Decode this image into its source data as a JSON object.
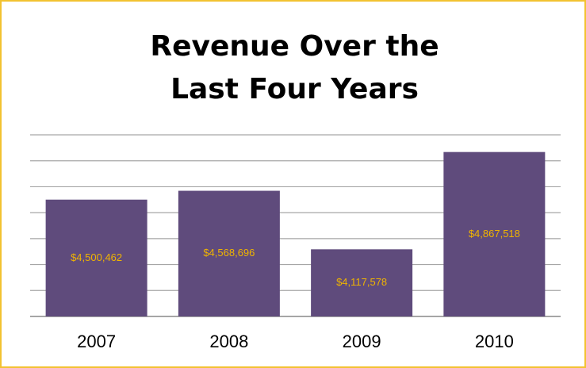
{
  "chart_data": {
    "type": "bar",
    "title": "Revenue Over the\nLast Four Years",
    "categories": [
      "2007",
      "2008",
      "2009",
      "2010"
    ],
    "values": [
      4500462,
      4568696,
      4117578,
      4867518
    ],
    "value_labels": [
      "$4,500,462",
      "$4,568,696",
      "$4,117,578",
      "$4,867,518"
    ],
    "color": "#5f4b7c",
    "label_color": "#f0b400",
    "ylim": [
      3600000,
      5000000
    ],
    "yticks": [
      3600000,
      3800000,
      4000000,
      4200000,
      4400000,
      4600000,
      4800000,
      5000000
    ],
    "grid": true
  }
}
